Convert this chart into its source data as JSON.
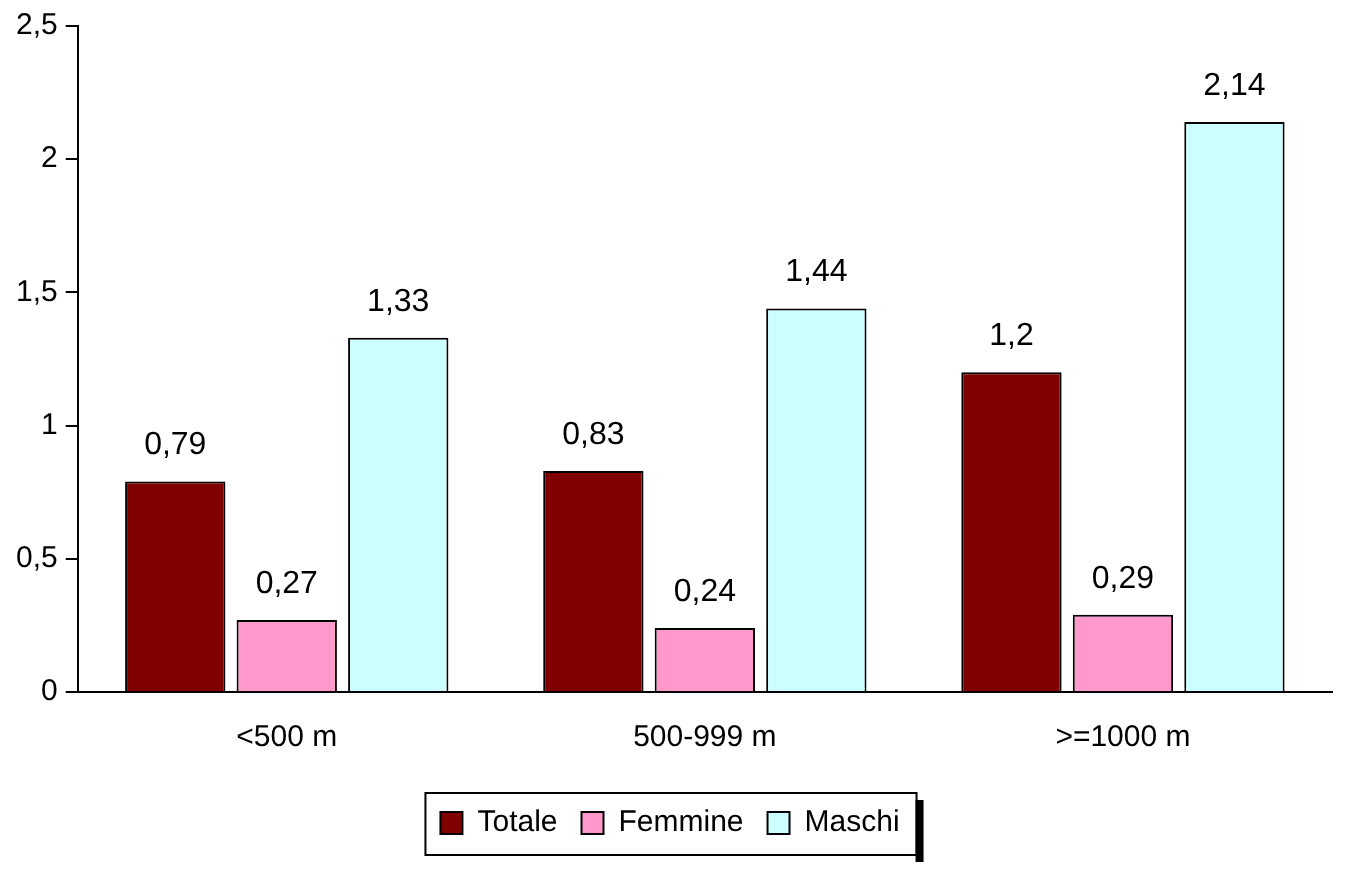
{
  "chart_data": {
    "type": "bar",
    "categories": [
      "<500 m",
      "500-999 m",
      ">=1000 m"
    ],
    "series": [
      {
        "name": "Totale",
        "color": "#800000",
        "values": [
          0.79,
          0.83,
          1.2
        ],
        "value_labels": [
          "0,79",
          "0,83",
          "1,2"
        ]
      },
      {
        "name": "Femmine",
        "color": "#ff99cc",
        "values": [
          0.27,
          0.24,
          0.29
        ],
        "value_labels": [
          "0,27",
          "0,24",
          "0,29"
        ]
      },
      {
        "name": "Maschi",
        "color": "#ccffff",
        "values": [
          1.33,
          1.44,
          2.14
        ],
        "value_labels": [
          "1,33",
          "1,44",
          "2,14"
        ]
      }
    ],
    "ylim": [
      0,
      2.5
    ],
    "yticks": [
      {
        "value": 0,
        "label": "0"
      },
      {
        "value": 0.5,
        "label": "0,5"
      },
      {
        "value": 1,
        "label": "1"
      },
      {
        "value": 1.5,
        "label": "1,5"
      },
      {
        "value": 2,
        "label": "2"
      },
      {
        "value": 2.5,
        "label": "2,5"
      }
    ],
    "legend": "bottom"
  }
}
